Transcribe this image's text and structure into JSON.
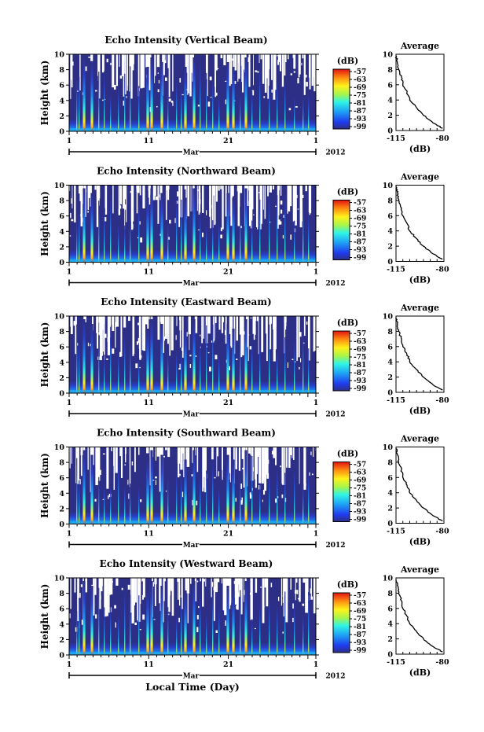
{
  "x_axis_label": "Local Time (Day)",
  "chart_data": [
    {
      "type": "heatmap",
      "title": "Echo Intensity (Vertical Beam)",
      "ylabel": "Height (km)",
      "ylim": [
        0,
        10
      ],
      "yticks": [
        "0",
        "2",
        "4",
        "6",
        "8",
        "10"
      ],
      "xticks": [
        "1",
        "11",
        "21",
        "1"
      ],
      "month_label": "Mar",
      "year_label": "2012",
      "colorbar": {
        "unit": "(dB)",
        "ticks": [
          "-57",
          "-63",
          "-69",
          "-75",
          "-81",
          "-87",
          "-93",
          "-99"
        ]
      },
      "profile": {
        "title": "Average",
        "xlabel": "(dB)",
        "xticks": [
          "-115",
          "-80"
        ],
        "yticks": [
          "0",
          "2",
          "4",
          "6",
          "8",
          "10"
        ],
        "height_km": [
          0.3,
          1,
          2,
          3,
          4,
          5,
          6,
          7,
          8,
          9,
          9.8
        ],
        "intensity_db": [
          -81,
          -88,
          -95,
          -100,
          -105,
          -107,
          -110,
          -111,
          -113,
          -114,
          -115
        ]
      }
    },
    {
      "type": "heatmap",
      "title": "Echo Intensity (Northward Beam)",
      "ylabel": "Height (km)",
      "ylim": [
        0,
        10
      ],
      "yticks": [
        "0",
        "2",
        "4",
        "6",
        "8",
        "10"
      ],
      "xticks": [
        "1",
        "11",
        "21",
        "1"
      ],
      "month_label": "Mar",
      "year_label": "2012",
      "colorbar": {
        "unit": "(dB)",
        "ticks": [
          "-57",
          "-63",
          "-69",
          "-75",
          "-81",
          "-87",
          "-93",
          "-99"
        ]
      },
      "profile": {
        "title": "Average",
        "xlabel": "(dB)",
        "xticks": [
          "-115",
          "-80"
        ],
        "yticks": [
          "0",
          "2",
          "4",
          "6",
          "8",
          "10"
        ],
        "height_km": [
          0.3,
          1,
          2,
          3,
          4,
          5,
          6,
          7,
          8,
          9,
          9.8
        ],
        "intensity_db": [
          -81,
          -88,
          -95,
          -100,
          -105,
          -107,
          -110,
          -111,
          -113,
          -114,
          -115
        ]
      }
    },
    {
      "type": "heatmap",
      "title": "Echo Intensity (Eastward Beam)",
      "ylabel": "Height (km)",
      "ylim": [
        0,
        10
      ],
      "yticks": [
        "0",
        "2",
        "4",
        "6",
        "8",
        "10"
      ],
      "xticks": [
        "1",
        "11",
        "21",
        "1"
      ],
      "month_label": "Mar",
      "year_label": "2012",
      "colorbar": {
        "unit": "(dB)",
        "ticks": [
          "-57",
          "-63",
          "-69",
          "-75",
          "-81",
          "-87",
          "-93",
          "-99"
        ]
      },
      "profile": {
        "title": "Average",
        "xlabel": "(dB)",
        "xticks": [
          "-115",
          "-80"
        ],
        "yticks": [
          "0",
          "2",
          "4",
          "6",
          "8",
          "10"
        ],
        "height_km": [
          0.3,
          1,
          2,
          3,
          4,
          5,
          6,
          7,
          8,
          9,
          9.8
        ],
        "intensity_db": [
          -81,
          -88,
          -95,
          -100,
          -105,
          -107,
          -110,
          -111,
          -113,
          -114,
          -115
        ]
      }
    },
    {
      "type": "heatmap",
      "title": "Echo Intensity (Southward Beam)",
      "ylabel": "Height (km)",
      "ylim": [
        0,
        10
      ],
      "yticks": [
        "0",
        "2",
        "4",
        "6",
        "8",
        "10"
      ],
      "xticks": [
        "1",
        "11",
        "21",
        "1"
      ],
      "month_label": "Mar",
      "year_label": "2012",
      "colorbar": {
        "unit": "(dB)",
        "ticks": [
          "-57",
          "-63",
          "-69",
          "-75",
          "-81",
          "-87",
          "-93",
          "-99"
        ]
      },
      "profile": {
        "title": "Average",
        "xlabel": "(dB)",
        "xticks": [
          "-115",
          "-80"
        ],
        "yticks": [
          "0",
          "2",
          "4",
          "6",
          "8",
          "10"
        ],
        "height_km": [
          0.3,
          1,
          2,
          3,
          4,
          5,
          6,
          7,
          8,
          9,
          9.8
        ],
        "intensity_db": [
          -81,
          -88,
          -95,
          -100,
          -105,
          -107,
          -110,
          -111,
          -113,
          -114,
          -115
        ]
      }
    },
    {
      "type": "heatmap",
      "title": "Echo Intensity (Westward Beam)",
      "ylabel": "Height (km)",
      "ylim": [
        0,
        10
      ],
      "yticks": [
        "0",
        "2",
        "4",
        "6",
        "8",
        "10"
      ],
      "xticks": [
        "1",
        "11",
        "21",
        "1"
      ],
      "month_label": "Mar",
      "year_label": "2012",
      "colorbar": {
        "unit": "(dB)",
        "ticks": [
          "-57",
          "-63",
          "-69",
          "-75",
          "-81",
          "-87",
          "-93",
          "-99"
        ]
      },
      "profile": {
        "title": "Average",
        "xlabel": "(dB)",
        "xticks": [
          "-115",
          "-80"
        ],
        "yticks": [
          "0",
          "2",
          "4",
          "6",
          "8",
          "10"
        ],
        "height_km": [
          0.3,
          1,
          2,
          3,
          4,
          5,
          6,
          7,
          8,
          9,
          9.8
        ],
        "intensity_db": [
          -81,
          -88,
          -95,
          -100,
          -105,
          -107,
          -110,
          -111,
          -113,
          -114,
          -115
        ]
      }
    }
  ]
}
